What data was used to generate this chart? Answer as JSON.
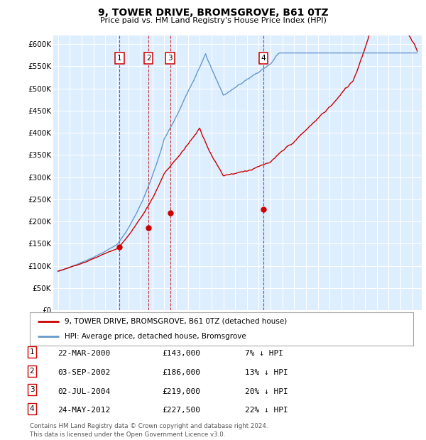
{
  "title": "9, TOWER DRIVE, BROMSGROVE, B61 0TZ",
  "subtitle": "Price paid vs. HM Land Registry's House Price Index (HPI)",
  "plot_bg_color": "#ddeeff",
  "ylim": [
    0,
    620000
  ],
  "yticks": [
    0,
    50000,
    100000,
    150000,
    200000,
    250000,
    300000,
    350000,
    400000,
    450000,
    500000,
    550000,
    600000
  ],
  "xlim_start": 1994.6,
  "xlim_end": 2025.8,
  "sale_color": "#cc0000",
  "hpi_color": "#6699cc",
  "legend_sale_label": "9, TOWER DRIVE, BROMSGROVE, B61 0TZ (detached house)",
  "legend_hpi_label": "HPI: Average price, detached house, Bromsgrove",
  "transactions": [
    {
      "num": 1,
      "date": 2000.22,
      "price": 143000,
      "label": "22-MAR-2000",
      "price_str": "£143,000",
      "pct": "7% ↓ HPI"
    },
    {
      "num": 2,
      "date": 2002.67,
      "price": 186000,
      "label": "03-SEP-2002",
      "price_str": "£186,000",
      "pct": "13% ↓ HPI"
    },
    {
      "num": 3,
      "date": 2004.5,
      "price": 219000,
      "label": "02-JUL-2004",
      "price_str": "£219,000",
      "pct": "20% ↓ HPI"
    },
    {
      "num": 4,
      "date": 2012.39,
      "price": 227500,
      "label": "24-MAY-2012",
      "price_str": "£227,500",
      "pct": "22% ↓ HPI"
    }
  ],
  "footer": "Contains HM Land Registry data © Crown copyright and database right 2024.\nThis data is licensed under the Open Government Licence v3.0."
}
